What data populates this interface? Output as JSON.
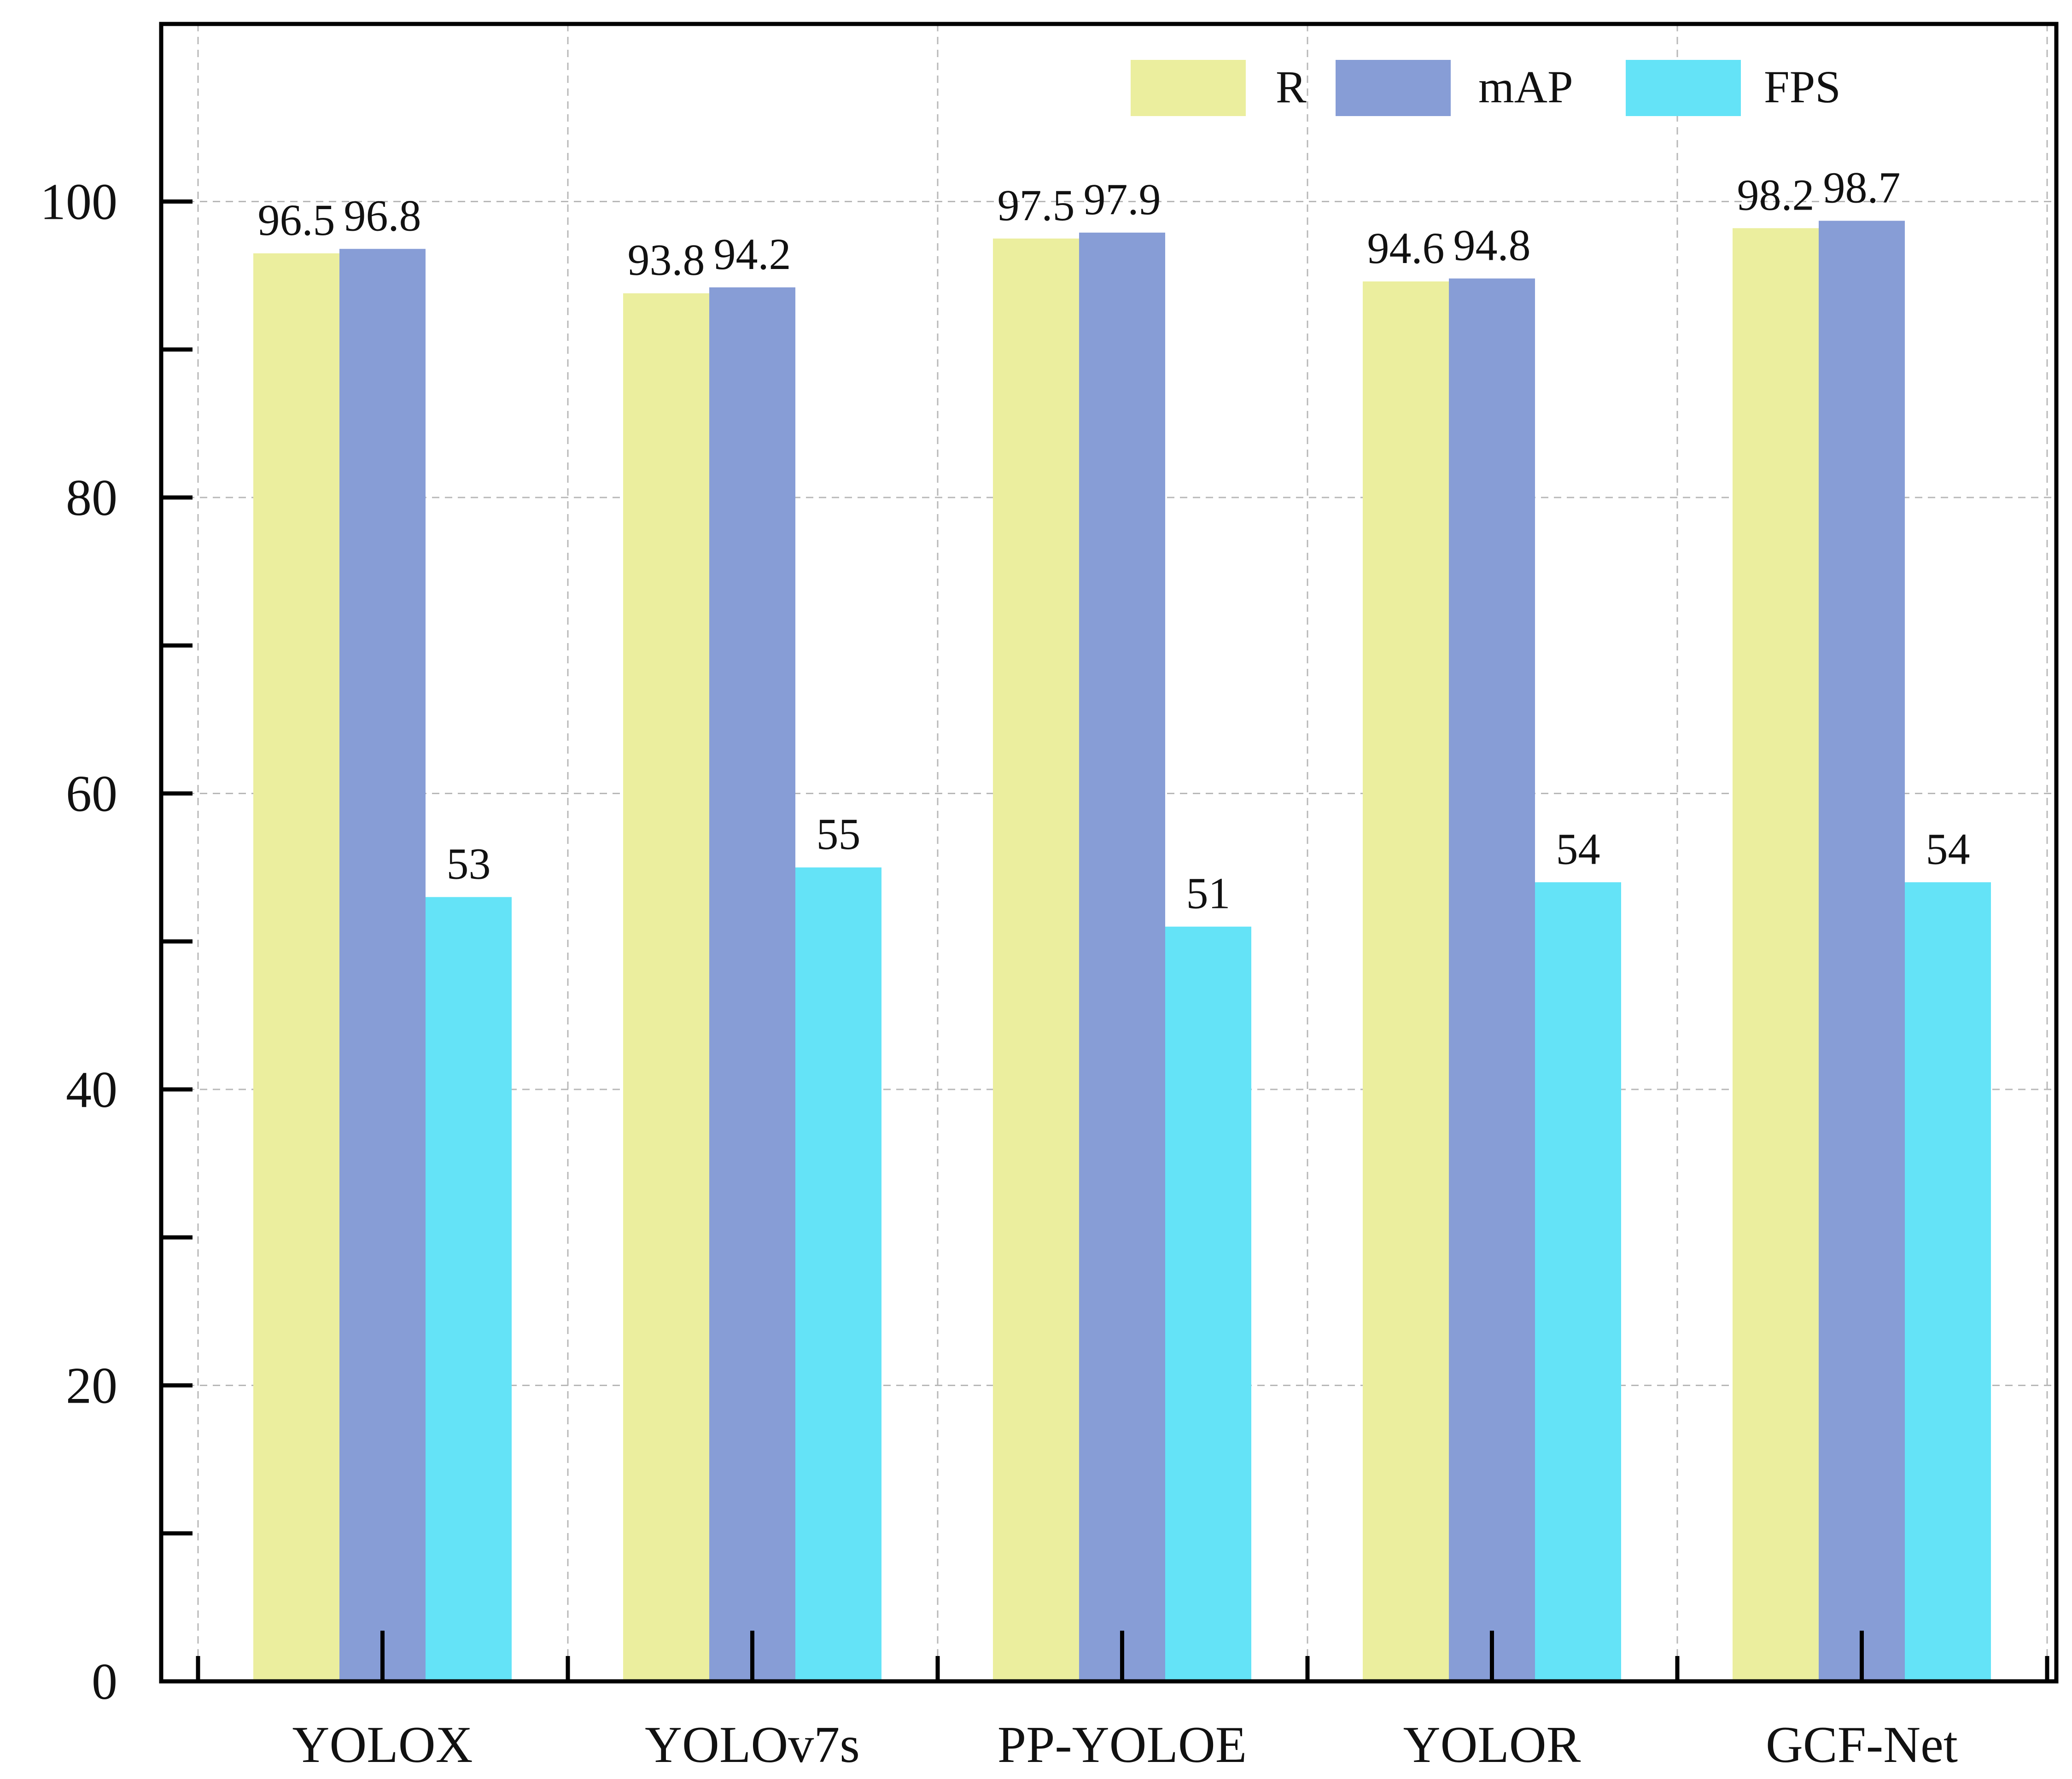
{
  "chart_data": {
    "type": "bar",
    "title": "",
    "xlabel": "",
    "ylabel": "",
    "ylim": [
      0,
      112
    ],
    "yticks": [
      0,
      20,
      40,
      60,
      80,
      100
    ],
    "minor_yticks": [
      10,
      30,
      50,
      70,
      90
    ],
    "grid": true,
    "legend_position": "top-right",
    "categories": [
      "YOLOX",
      "YOLOv7s",
      "PP-YOLOE",
      "YOLOR",
      "GCF-Net"
    ],
    "series": [
      {
        "name": "R",
        "color": "#EBEE9E",
        "values": [
          96.5,
          93.8,
          97.5,
          94.6,
          98.2
        ]
      },
      {
        "name": "mAP",
        "color": "#879DD6",
        "values": [
          96.8,
          94.2,
          97.9,
          94.8,
          98.7
        ]
      },
      {
        "name": "FPS",
        "color": "#64E3F7",
        "values": [
          53,
          55,
          51,
          54,
          54
        ]
      }
    ]
  }
}
